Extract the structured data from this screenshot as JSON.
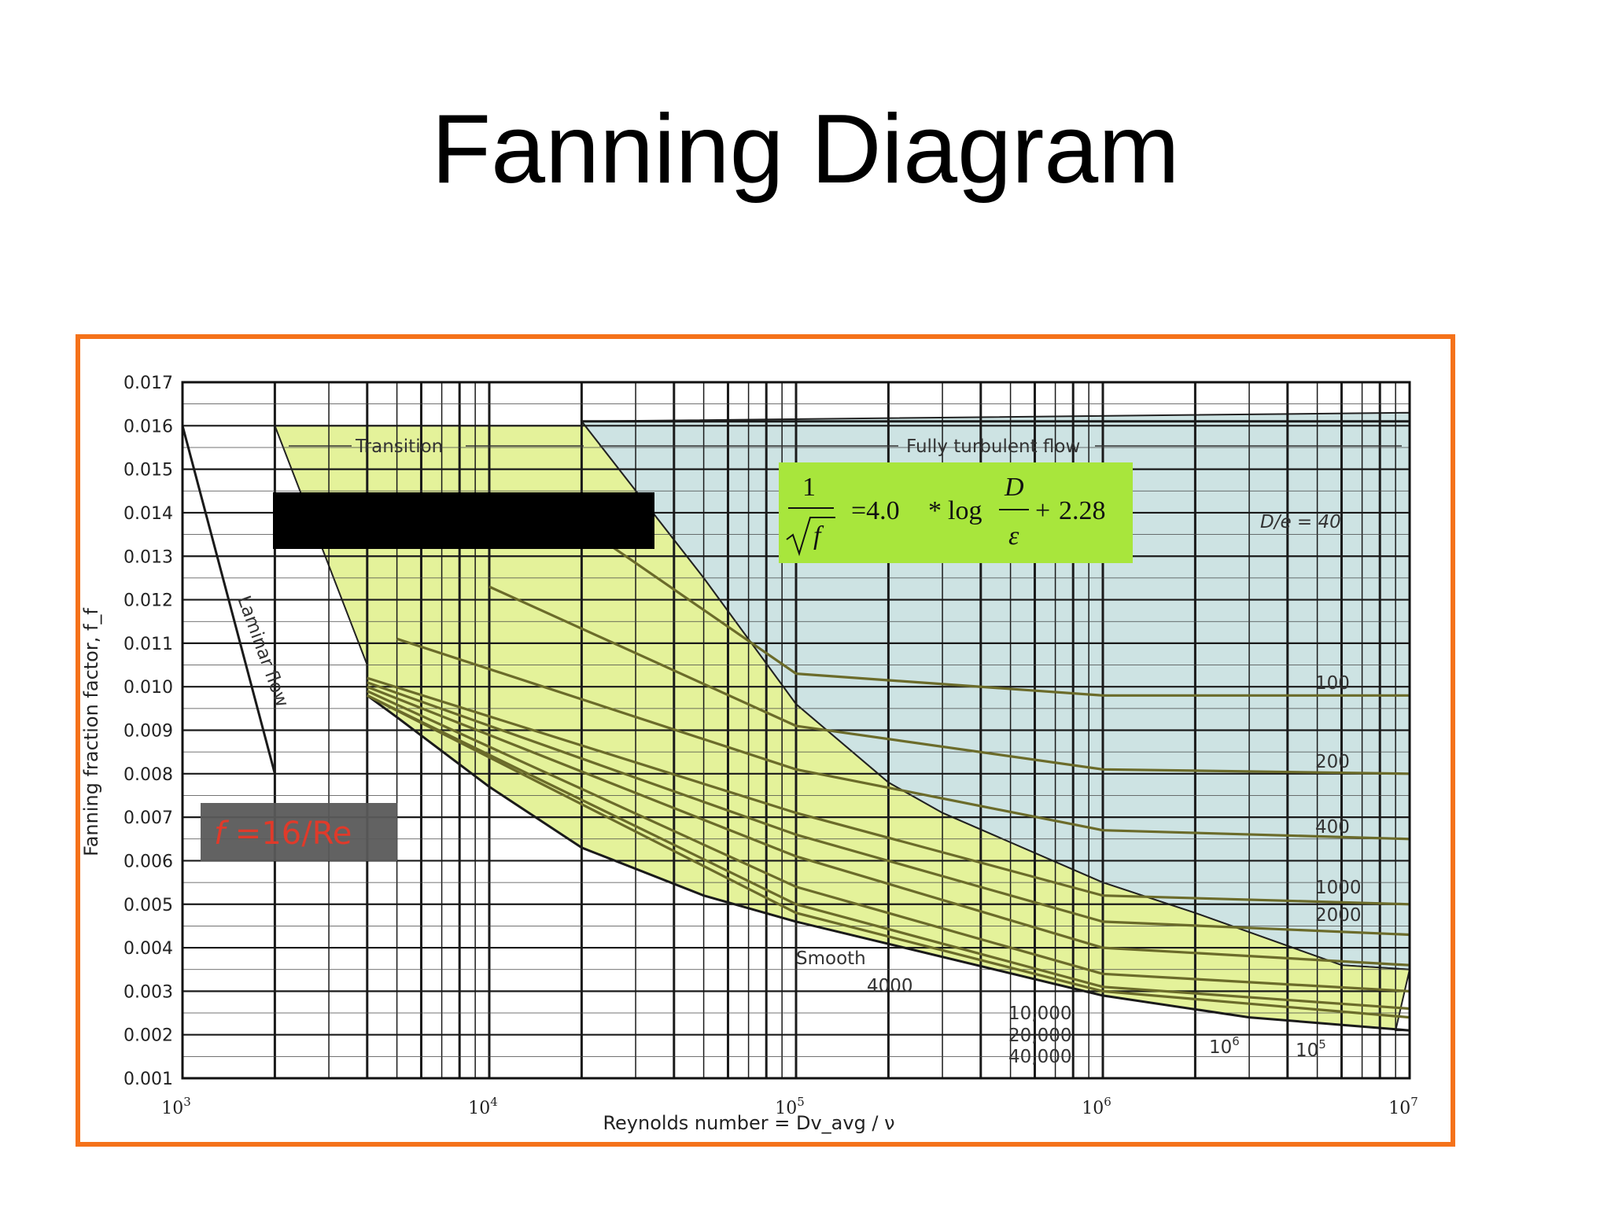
{
  "slide": {
    "title": "Fanning Diagram"
  },
  "colors": {
    "frame": "#f5721a",
    "transition_fill": "#e4f29a",
    "turbulent_fill": "#cde3e3",
    "curve": "#6b6b2a",
    "formula_box": "#a8e63c",
    "label_box": "#5a5a5a",
    "label_text": "#e03a2a",
    "redaction": "#000000"
  },
  "chart_data": {
    "type": "line",
    "x_scale": "log",
    "y_scale": "linear",
    "xlim": [
      1000,
      10000000
    ],
    "ylim": [
      0.001,
      0.017
    ],
    "grid": true,
    "xlabel": "Reynolds number = Dv_avg / ν",
    "ylabel": "Fanning fraction factor, f_f",
    "x_ticks": [
      1000,
      10000,
      100000,
      1000000,
      10000000
    ],
    "x_tick_labels": [
      {
        "base": "10",
        "exp": "3"
      },
      {
        "base": "10",
        "exp": "4"
      },
      {
        "base": "10",
        "exp": "5"
      },
      {
        "base": "10",
        "exp": "6"
      },
      {
        "base": "10",
        "exp": "7"
      }
    ],
    "y_ticks": [
      0.001,
      0.002,
      0.003,
      0.004,
      0.005,
      0.006,
      0.007,
      0.008,
      0.009,
      0.01,
      0.011,
      0.012,
      0.013,
      0.014,
      0.015,
      0.016,
      0.017
    ],
    "y_tick_labels": [
      "0.001",
      "0.002",
      "0.003",
      "0.004",
      "0.005",
      "0.006",
      "0.007",
      "0.008",
      "0.009",
      "0.010",
      "0.011",
      "0.012",
      "0.013",
      "0.014",
      "0.015",
      "0.016",
      "0.017"
    ],
    "region_labels": {
      "transition": "Transition",
      "turbulent": "Fully turbulent flow",
      "laminar": "Laminar flow"
    },
    "series": [
      {
        "name": "Laminar flow",
        "x": [
          1000,
          2000
        ],
        "y": [
          0.016,
          0.008
        ]
      },
      {
        "name": "Smooth",
        "x": [
          4000,
          5000,
          10000,
          20000,
          50000,
          100000,
          1000000,
          3000000,
          10000000
        ],
        "y": [
          0.0098,
          0.0093,
          0.0077,
          0.0063,
          0.0052,
          0.0046,
          0.0029,
          0.0024,
          0.0021
        ]
      },
      {
        "name": "D/e = 40",
        "x": [
          20000,
          100000,
          1000000,
          10000000
        ],
        "y": [
          0.0161,
          0.0161,
          0.0161,
          0.0161
        ]
      },
      {
        "name": "100",
        "x": [
          20000,
          100000,
          1000000,
          10000000
        ],
        "y": [
          0.0137,
          0.0103,
          0.0098,
          0.0098
        ]
      },
      {
        "name": "200",
        "x": [
          10000,
          100000,
          1000000,
          10000000
        ],
        "y": [
          0.0123,
          0.0091,
          0.0081,
          0.008
        ]
      },
      {
        "name": "400",
        "x": [
          5000,
          100000,
          1000000,
          10000000
        ],
        "y": [
          0.0111,
          0.0081,
          0.0067,
          0.0065
        ]
      },
      {
        "name": "1000",
        "x": [
          4000,
          100000,
          1000000,
          10000000
        ],
        "y": [
          0.0102,
          0.0071,
          0.0052,
          0.005
        ]
      },
      {
        "name": "2000",
        "x": [
          4000,
          100000,
          1000000,
          10000000
        ],
        "y": [
          0.0101,
          0.0066,
          0.0046,
          0.0043
        ]
      },
      {
        "name": "4000",
        "x": [
          4000,
          100000,
          1000000,
          10000000
        ],
        "y": [
          0.01,
          0.0061,
          0.004,
          0.0036
        ]
      },
      {
        "name": "10,000",
        "x": [
          4000,
          100000,
          1000000,
          10000000
        ],
        "y": [
          0.0099,
          0.0054,
          0.0034,
          0.003
        ]
      },
      {
        "name": "20,000",
        "x": [
          4000,
          100000,
          1000000,
          10000000
        ],
        "y": [
          0.0098,
          0.005,
          0.0031,
          0.0026
        ]
      },
      {
        "name": "40,000",
        "x": [
          4000,
          100000,
          1000000,
          10000000
        ],
        "y": [
          0.0098,
          0.0048,
          0.003,
          0.0024
        ]
      }
    ],
    "turbulent_boundary": {
      "x": [
        2000,
        4000,
        20000,
        50000,
        100000,
        200000,
        300000,
        1000000,
        2000000,
        6000000,
        10000000
      ],
      "y": [
        0.016,
        0.0105,
        0.0161,
        0.0125,
        0.0096,
        0.0078,
        0.0071,
        0.0055,
        0.0048,
        0.0036,
        0.0035
      ]
    },
    "curve_labels": [
      {
        "text": "D/e = 40"
      },
      {
        "text": "100"
      },
      {
        "text": "200"
      },
      {
        "text": "400"
      },
      {
        "text": "1000"
      },
      {
        "text": "2000"
      },
      {
        "text": "Smooth"
      },
      {
        "text": "4000"
      },
      {
        "text": "10,000"
      },
      {
        "text": "20,000"
      },
      {
        "text": "40,000"
      },
      {
        "text": "10",
        "exp": "6"
      },
      {
        "text": "10",
        "exp": "5"
      }
    ],
    "overlays": {
      "formula": {
        "lhs_num": "1",
        "lhs_den": "f",
        "eq": "=4.0",
        "mul": "*",
        "log": "log",
        "frac_num": "D",
        "frac_den": "ε",
        "plus": "+",
        "const": "2.28"
      },
      "laminar_label": {
        "lhs": "f",
        "rhs": " =16/Re"
      }
    }
  }
}
